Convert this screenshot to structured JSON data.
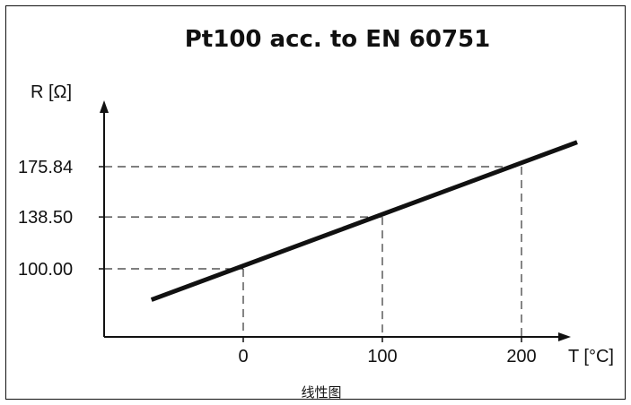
{
  "chart_data": {
    "type": "line",
    "title": "Pt100 acc. to EN 60751",
    "ylabel": "R [Ω]",
    "xlabel": "T [°C]",
    "x_ticks": [
      "0",
      "100",
      "200"
    ],
    "y_ticks": [
      "100.00",
      "138.50",
      "175.84"
    ],
    "series": [
      {
        "x": [
          -66,
          240
        ],
        "y": [
          77,
          194
        ]
      }
    ],
    "reference_points": [
      {
        "x": 0,
        "y": 100.0
      },
      {
        "x": 100,
        "y": 138.5
      },
      {
        "x": 200,
        "y": 175.84
      }
    ],
    "xlim": [
      -100,
      240
    ],
    "ylim": [
      70,
      200
    ],
    "grid": false
  },
  "caption": "线性图",
  "colors": {
    "line": "#111111",
    "dashed": "#333333"
  }
}
